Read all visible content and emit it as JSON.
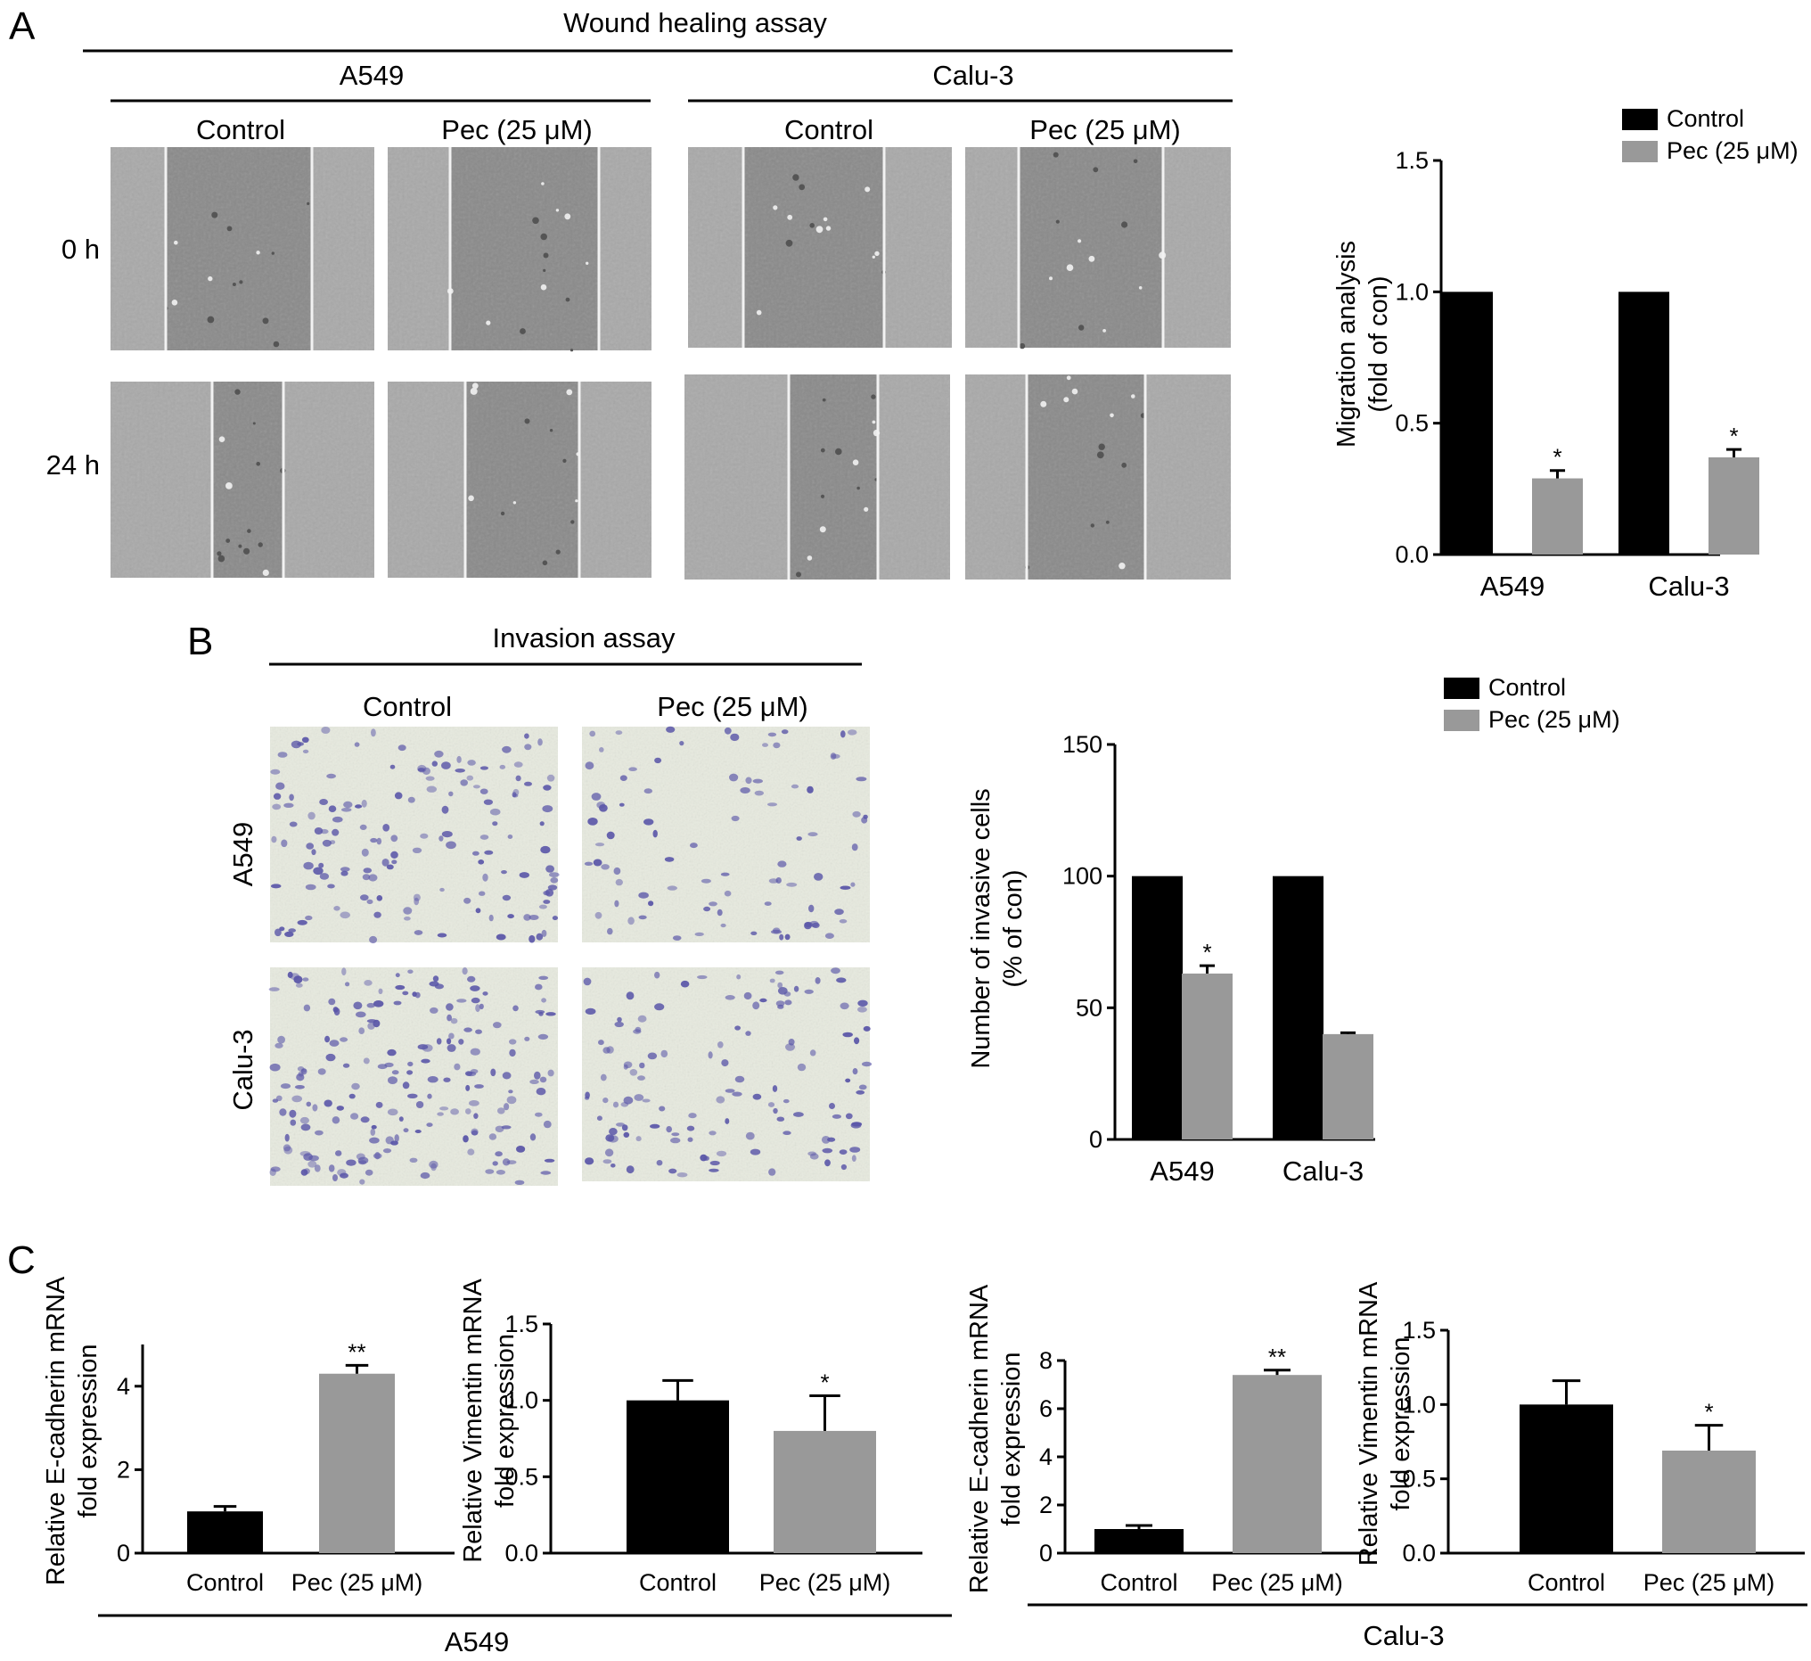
{
  "colors": {
    "control": "#000000",
    "treatment": "#999999",
    "scratch_bg": "#8a8a8a",
    "scratch_cells": "#a9a9a9",
    "transwell_bg": "#e7eadf",
    "stain": "#5a56a8"
  },
  "panel_a": {
    "letter": "A",
    "title": "Wound healing assay",
    "groups": [
      "A549",
      "Calu-3"
    ],
    "conditions": [
      "Control",
      "Pec (25 μM)"
    ],
    "timepoints": [
      "0 h",
      "24 h"
    ]
  },
  "panel_b": {
    "letter": "B",
    "title": "Invasion assay",
    "conditions": [
      "Control",
      "Pec (25 μM)"
    ],
    "rows": [
      "A549",
      "Calu-3"
    ]
  },
  "panel_c": {
    "letter": "C",
    "groups": [
      "A549",
      "Calu-3"
    ]
  },
  "chart_data": [
    {
      "id": "migration",
      "type": "bar",
      "categories": [
        "A549",
        "Calu-3"
      ],
      "series": [
        {
          "name": "Control",
          "values": [
            1.0,
            1.0
          ],
          "errors": [
            0,
            0
          ]
        },
        {
          "name": "Pec (25 μM)",
          "values": [
            0.29,
            0.37
          ],
          "errors": [
            0.03,
            0.03
          ],
          "significance": [
            "*",
            "*"
          ]
        }
      ],
      "ylabel": [
        "Migration analysis",
        "(fold of con)"
      ],
      "ylim": [
        0,
        1.5
      ],
      "yticks": [
        0.0,
        0.5,
        1.0,
        1.5
      ],
      "ytick_labels": [
        "0.0",
        "0.5",
        "1.0",
        "1.5"
      ],
      "legend": "top-right"
    },
    {
      "id": "invasion",
      "type": "bar",
      "categories": [
        "A549",
        "Calu-3"
      ],
      "series": [
        {
          "name": "Control",
          "values": [
            100,
            100
          ],
          "errors": [
            0,
            0
          ]
        },
        {
          "name": "Pec (25 μM)",
          "values": [
            63,
            40
          ],
          "errors": [
            3,
            0.5
          ],
          "significance": [
            "*",
            ""
          ]
        }
      ],
      "ylabel": [
        "Number of invasive cells",
        "(% of con)"
      ],
      "ylim": [
        0,
        150
      ],
      "yticks": [
        0,
        50,
        100,
        150
      ],
      "ytick_labels": [
        "0",
        "50",
        "100",
        "150"
      ],
      "legend": "top-right"
    },
    {
      "id": "a549_ecad",
      "type": "bar",
      "categories": [
        "Control",
        "Pec (25 μM)"
      ],
      "values": [
        1.0,
        4.3
      ],
      "errors": [
        0.12,
        0.2
      ],
      "significance": [
        "",
        "**"
      ],
      "ylabel": [
        "Relative E-cadherin mRNA",
        "fold expression"
      ],
      "ylim": [
        0,
        5
      ],
      "yticks": [
        0,
        2,
        4
      ],
      "ytick_labels": [
        "0",
        "2",
        "4"
      ]
    },
    {
      "id": "a549_vim",
      "type": "bar",
      "categories": [
        "Control",
        "Pec (25 μM)"
      ],
      "values": [
        1.0,
        0.8
      ],
      "errors": [
        0.13,
        0.23
      ],
      "significance": [
        "",
        "*"
      ],
      "ylabel": [
        "Relative Vimentin mRNA",
        "fold expression"
      ],
      "ylim": [
        0,
        1.5
      ],
      "yticks": [
        0.0,
        0.5,
        1.0,
        1.5
      ],
      "ytick_labels": [
        "0.0",
        "0.5",
        "1.0",
        "1.5"
      ]
    },
    {
      "id": "calu3_ecad",
      "type": "bar",
      "categories": [
        "Control",
        "Pec (25 μM)"
      ],
      "values": [
        1.0,
        7.4
      ],
      "errors": [
        0.15,
        0.2
      ],
      "significance": [
        "",
        "**"
      ],
      "ylabel": [
        "Relative E-cadherin mRNA",
        "fold expression"
      ],
      "ylim": [
        0,
        8
      ],
      "yticks": [
        0,
        2,
        4,
        6,
        8
      ],
      "ytick_labels": [
        "0",
        "2",
        "4",
        "6",
        "8"
      ]
    },
    {
      "id": "calu3_vim",
      "type": "bar",
      "categories": [
        "Control",
        "Pec (25 μM)"
      ],
      "values": [
        1.0,
        0.69
      ],
      "errors": [
        0.16,
        0.17
      ],
      "significance": [
        "",
        "*"
      ],
      "ylabel": [
        "Relative Vimentin mRNA",
        "fold expression"
      ],
      "ylim": [
        0,
        1.5
      ],
      "yticks": [
        0.0,
        0.5,
        1.0,
        1.5
      ],
      "ytick_labels": [
        "0.0",
        "0.5",
        "1.0",
        "1.5"
      ]
    }
  ]
}
